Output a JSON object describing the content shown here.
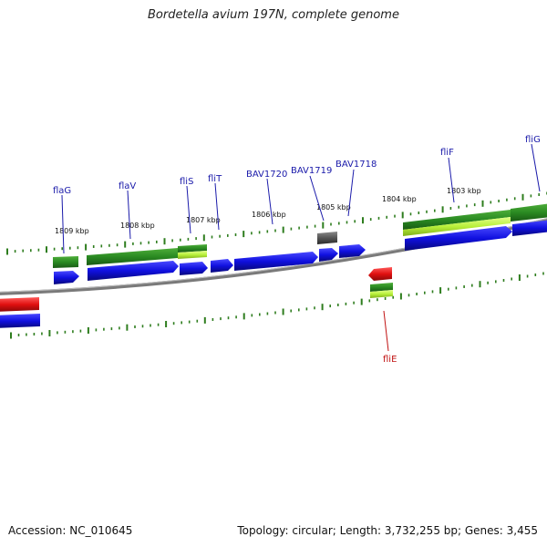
{
  "header": {
    "title": "Bordetella avium 197N, complete genome"
  },
  "footer": {
    "accession": "Accession: NC_010645",
    "summary": "Topology: circular; Length: 3,732,255 bp; Genes: 3,455"
  },
  "colors": {
    "backbone": "#7a7a7a",
    "tick": "#2e7d1e",
    "forward_gene": "#1010e0",
    "gene_dark_green": "#2a8a22",
    "gene_light_green": "#b8f03a",
    "gene_red": "#e01010",
    "gene_grey": "#555555",
    "label_blue": "#1a1aaa",
    "label_red": "#c01010"
  },
  "scale_labels": [
    "1809 kbp",
    "1808 kbp",
    "1807 kbp",
    "1806 kbp",
    "1805 kbp",
    "1804 kbp",
    "1803 kbp"
  ],
  "gene_labels": [
    {
      "name": "flaG",
      "strand": "forward"
    },
    {
      "name": "flaV",
      "strand": "forward"
    },
    {
      "name": "fliS",
      "strand": "forward"
    },
    {
      "name": "fliT",
      "strand": "forward"
    },
    {
      "name": "BAV1720",
      "strand": "forward"
    },
    {
      "name": "BAV1719",
      "strand": "forward"
    },
    {
      "name": "BAV1718",
      "strand": "forward"
    },
    {
      "name": "fliF",
      "strand": "forward"
    },
    {
      "name": "fliG",
      "strand": "forward"
    },
    {
      "name": "fliE",
      "strand": "reverse"
    }
  ]
}
